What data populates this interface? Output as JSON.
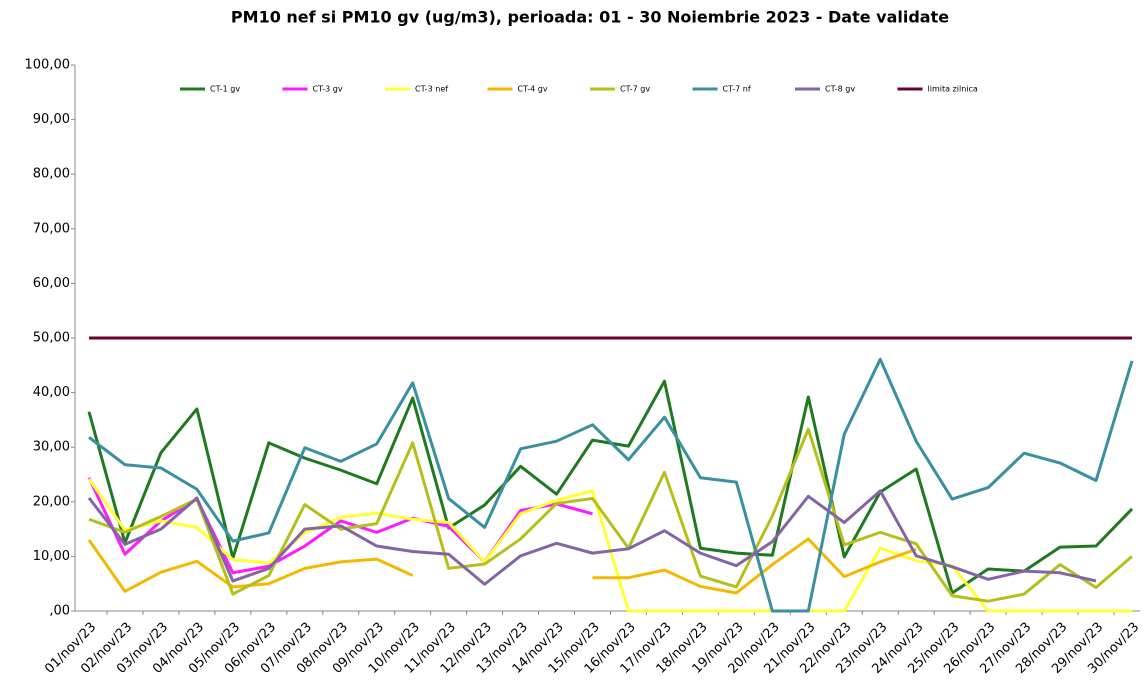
{
  "chart_data": {
    "type": "line",
    "title": "PM10 nef si PM10 gv (ug/m3), perioada: 01 - 30 Noiembrie 2023 - Date validate",
    "categories": [
      "01/nov/23",
      "02/nov/23",
      "03/nov/23",
      "04/nov/23",
      "05/nov/23",
      "06/nov/23",
      "07/nov/23",
      "08/nov/23",
      "09/nov/23",
      "10/nov/23",
      "11/nov/23",
      "12/nov/23",
      "13/nov/23",
      "14/nov/23",
      "15/nov/23",
      "16/nov/23",
      "17/nov/23",
      "18/nov/23",
      "19/nov/23",
      "20/nov/23",
      "21/nov/23",
      "22/nov/23",
      "23/nov/23",
      "24/nov/23",
      "25/nov/23",
      "26/nov/23",
      "27/nov/23",
      "28/nov/23",
      "29/nov/23",
      "30/nov/23"
    ],
    "series": [
      {
        "name": "CT-1 gv",
        "color": "#1f7a1f",
        "values": [
          36.5,
          12.5,
          29,
          37,
          9.7,
          30.8,
          28,
          25.8,
          23.3,
          39,
          15.2,
          19.4,
          26.5,
          21.4,
          31.3,
          30.2,
          42.1,
          11.5,
          10.6,
          10.2,
          39.2,
          9.9,
          21.8,
          26,
          3.3,
          7.7,
          7.3,
          11.7,
          11.9,
          18.7
        ]
      },
      {
        "name": "CT-3 gv",
        "color": "#ff1aff",
        "values": [
          24.4,
          10.4,
          16.5,
          20.5,
          7.0,
          8.2,
          11.9,
          16.5,
          14.4,
          17,
          15.5,
          9,
          18.4,
          19.6,
          17.8,
          null,
          null,
          null,
          null,
          null,
          null,
          null,
          null,
          null,
          null,
          null,
          null,
          null,
          null,
          null
        ]
      },
      {
        "name": "CT-3 nef",
        "color": "#ffff33",
        "values": [
          24.2,
          14.8,
          16.5,
          15.3,
          9.4,
          8.8,
          14.3,
          17.2,
          17.9,
          16.8,
          16.2,
          9,
          17.8,
          20.3,
          22,
          0,
          0,
          0,
          0,
          0,
          0,
          0,
          11.5,
          9.2,
          8.3,
          0,
          0,
          0,
          0,
          0
        ]
      },
      {
        "name": "CT-4 gv",
        "color": "#f5b800",
        "values": [
          13,
          3.6,
          7.1,
          9.1,
          4.4,
          5,
          7.8,
          9,
          9.5,
          6.5,
          null,
          null,
          null,
          null,
          6.1,
          6.1,
          7.5,
          4.5,
          3.3,
          8.5,
          13.2,
          6.3,
          9,
          11.3,
          null,
          null,
          null,
          null,
          null,
          null
        ]
      },
      {
        "name": "CT-7 gv",
        "color": "#b5bf1a",
        "values": [
          16.8,
          14.4,
          17.3,
          20.5,
          3.1,
          6.5,
          19.5,
          15,
          16,
          30.8,
          7.8,
          8.6,
          13.2,
          19.7,
          20.6,
          11.5,
          25.4,
          6.4,
          4.4,
          17.4,
          33.3,
          12.1,
          14.4,
          12.3,
          2.8,
          1.8,
          3.1,
          8.5,
          4.3,
          10
        ]
      },
      {
        "name": "CT-7 nf",
        "color": "#3a8fa0",
        "values": [
          31.8,
          26.8,
          26.2,
          22.3,
          12.8,
          14.3,
          29.9,
          27.4,
          30.6,
          41.8,
          20.6,
          15.3,
          29.7,
          31.1,
          34.1,
          27.7,
          35.5,
          24.4,
          23.6,
          0,
          0,
          32.4,
          46.1,
          31.1,
          20.5,
          22.6,
          28.9,
          27.1,
          23.9,
          45.8
        ]
      },
      {
        "name": "CT-8 gv",
        "color": "#8464a6",
        "values": [
          20.7,
          12.2,
          15,
          20.7,
          5.5,
          7.8,
          15,
          15.6,
          11.9,
          10.9,
          10.4,
          4.9,
          10.1,
          12.4,
          10.6,
          11.4,
          14.7,
          10.6,
          8.3,
          12.7,
          21,
          16.2,
          22,
          10.1,
          8.1,
          5.8,
          7.3,
          7,
          5.5,
          null
        ]
      },
      {
        "name": "limita zilnica",
        "color": "#6b0033",
        "values": [
          50,
          50,
          50,
          50,
          50,
          50,
          50,
          50,
          50,
          50,
          50,
          50,
          50,
          50,
          50,
          50,
          50,
          50,
          50,
          50,
          50,
          50,
          50,
          50,
          50,
          50,
          50,
          50,
          50,
          50
        ]
      }
    ],
    "ylim": [
      0,
      100
    ],
    "yticks": [
      {
        "value": 0,
        "label": ",00"
      },
      {
        "value": 10,
        "label": "10,00"
      },
      {
        "value": 20,
        "label": "20,00"
      },
      {
        "value": 30,
        "label": "30,00"
      },
      {
        "value": 40,
        "label": "40,00"
      },
      {
        "value": 50,
        "label": "50,00"
      },
      {
        "value": 60,
        "label": "60,00"
      },
      {
        "value": 70,
        "label": "70,00"
      },
      {
        "value": 80,
        "label": "80,00"
      },
      {
        "value": 90,
        "label": "90,00"
      },
      {
        "value": 100,
        "label": "100,00"
      }
    ],
    "grid": false,
    "legend": "top"
  }
}
